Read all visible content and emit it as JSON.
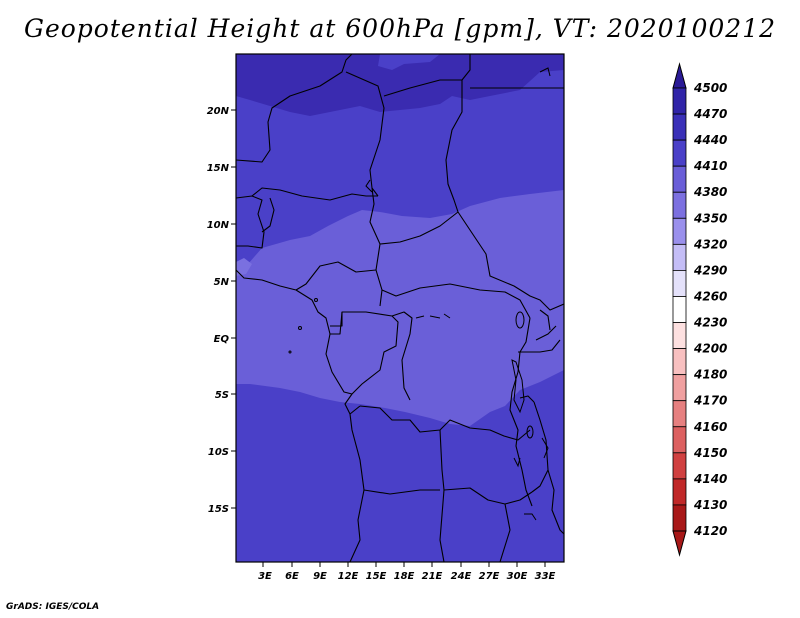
{
  "title": "Geopotential Height at 600hPa [gpm], VT: 2020100212",
  "footer": "GrADS: IGES/COLA",
  "x_ticks": [
    "3E",
    "6E",
    "9E",
    "12E",
    "15E",
    "18E",
    "21E",
    "24E",
    "27E",
    "30E",
    "33E"
  ],
  "y_ticks": [
    "20N",
    "15N",
    "10N",
    "5N",
    "EQ",
    "5S",
    "10S",
    "15S"
  ],
  "colorbar": {
    "levels": [
      "4500",
      "4470",
      "4440",
      "4410",
      "4380",
      "4350",
      "4320",
      "4290",
      "4260",
      "4230",
      "4200",
      "4180",
      "4170",
      "4160",
      "4150",
      "4140",
      "4130",
      "4120"
    ],
    "colors": [
      "#2a1a96",
      "#3024a8",
      "#3a30b8",
      "#4a40c8",
      "#6a5ed8",
      "#7c70e0",
      "#9a90ec",
      "#c4bdf6",
      "#e4e1fa",
      "#ffffff",
      "#fde0e0",
      "#f8c0c0",
      "#f0a0a0",
      "#e68080",
      "#dc6060",
      "#d04040",
      "#c02828",
      "#a81818"
    ]
  },
  "field_colors": {
    "level_4470": "#3828a8",
    "level_4440": "#4a40c8",
    "level_4410": "#6a5ed8"
  }
}
